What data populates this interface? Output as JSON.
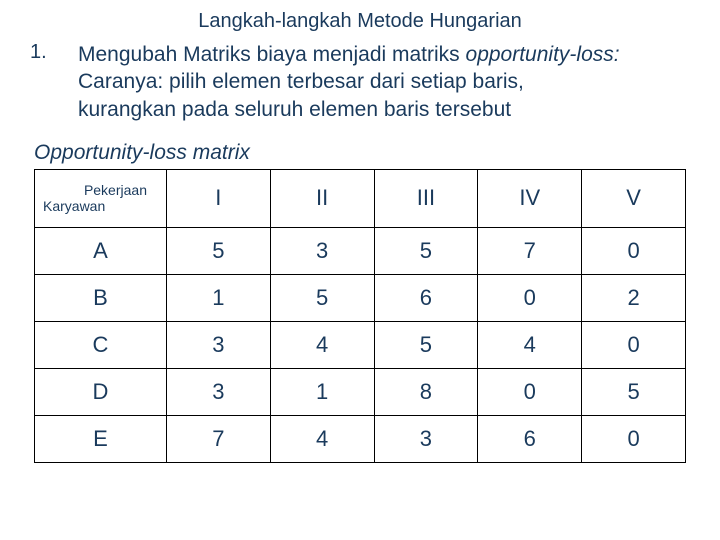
{
  "title": "Langkah-langkah Metode Hungarian",
  "bullet": {
    "num": "1.",
    "line1a": "Mengubah Matriks biaya menjadi matriks",
    "line1b": "opportunity-loss:",
    "line2": "Caranya: pilih elemen terbesar dari setiap baris,",
    "line3": "kurangkan pada seluruh elemen baris tersebut"
  },
  "matrix_label": "Opportunity-loss matrix",
  "table": {
    "corner_top": "Pekerjaan",
    "corner_bottom": "Karyawan",
    "cols": [
      "I",
      "II",
      "III",
      "IV",
      "V"
    ],
    "rows": [
      {
        "label": "A",
        "vals": [
          "5",
          "3",
          "5",
          "7",
          "0"
        ]
      },
      {
        "label": "B",
        "vals": [
          "1",
          "5",
          "6",
          "0",
          "2"
        ]
      },
      {
        "label": "C",
        "vals": [
          "3",
          "4",
          "5",
          "4",
          "0"
        ]
      },
      {
        "label": "D",
        "vals": [
          "3",
          "1",
          "8",
          "0",
          "5"
        ]
      },
      {
        "label": "E",
        "vals": [
          "7",
          "4",
          "3",
          "6",
          "0"
        ]
      }
    ]
  },
  "styling": {
    "text_color": "#1a3a5c",
    "border_color": "#000000",
    "background": "#ffffff",
    "font_family": "Arial",
    "title_fontsize": 20,
    "body_fontsize": 21,
    "table_fontsize": 22,
    "corner_fontsize": 14
  }
}
